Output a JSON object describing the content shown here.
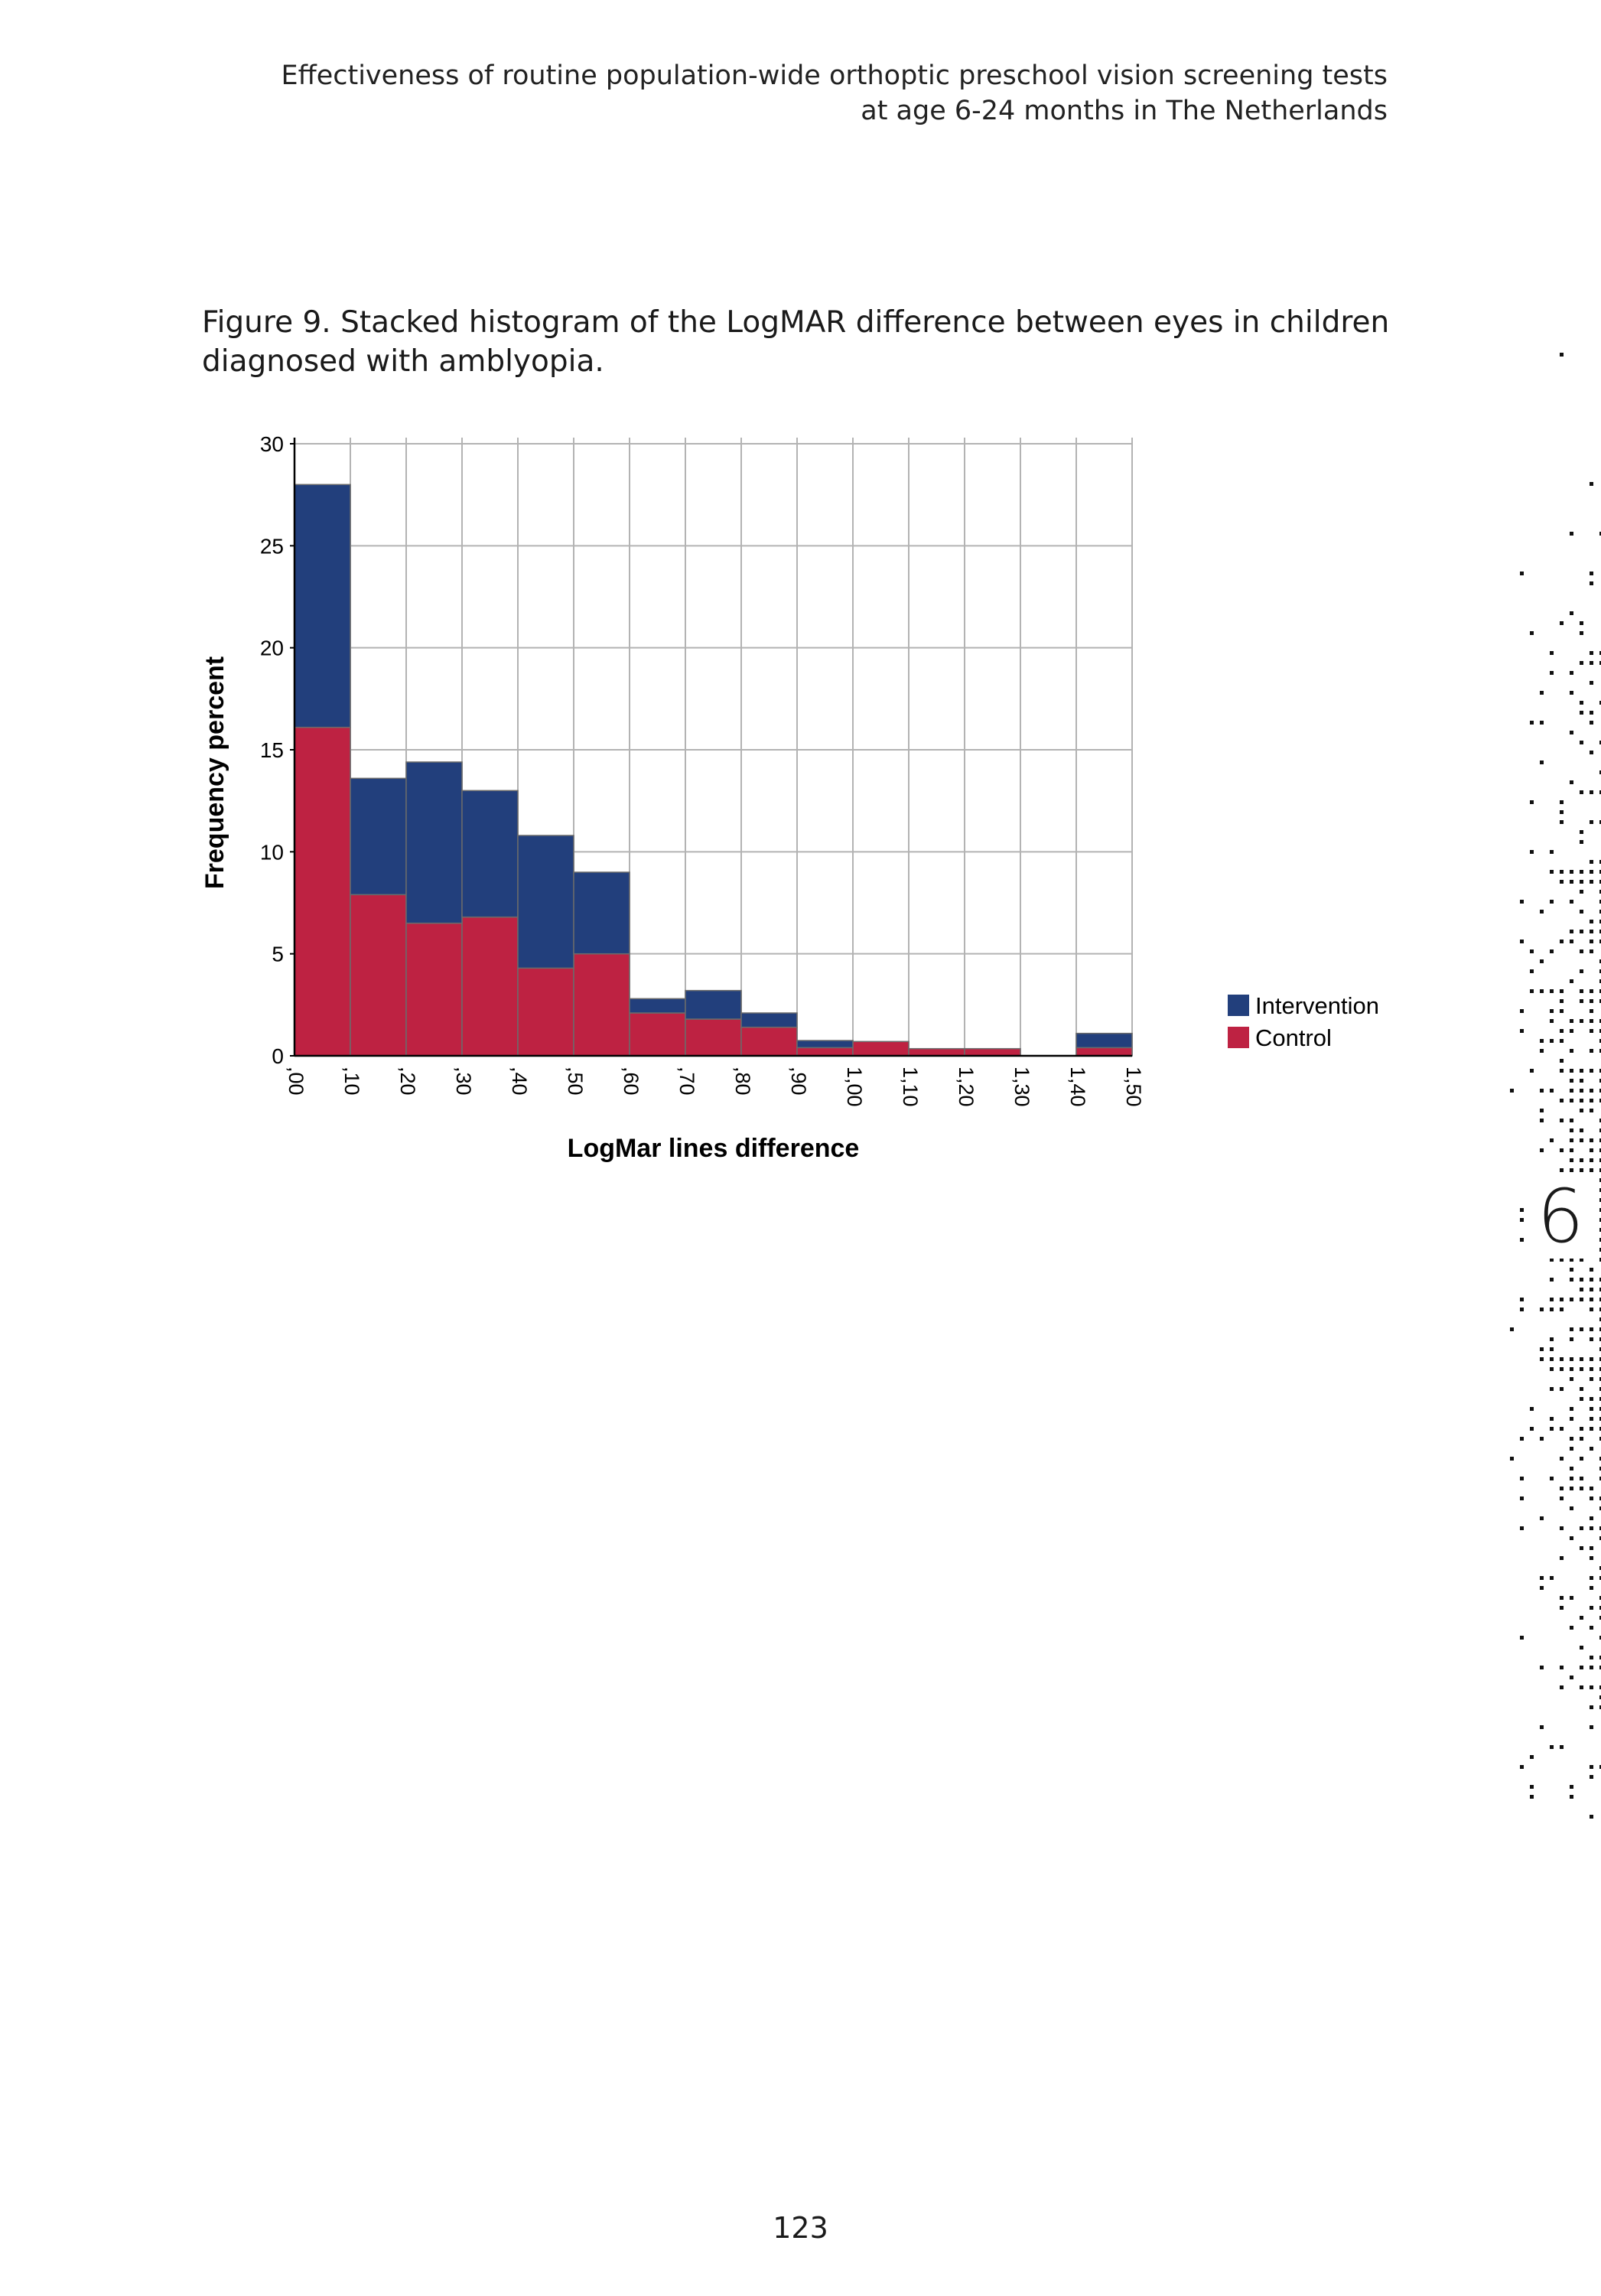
{
  "page": {
    "running_header": [
      "Effectiveness of routine population-wide orthoptic preschool vision screening tests",
      "at age 6-24 months in The Netherlands"
    ],
    "caption_label": "Figure 9.",
    "caption_text": " Stacked histogram of the LogMAR difference between eyes in children diagnosed with amblyopia.",
    "chapter_number": "6",
    "page_number": "123"
  },
  "chart_data": {
    "type": "bar",
    "stacked": true,
    "xlabel": "LogMar lines difference",
    "ylabel": "Frequency percent",
    "ylim": [
      0,
      30
    ],
    "y_ticks": [
      "0",
      "5",
      "10",
      "15",
      "20",
      "25",
      "30"
    ],
    "x_ticks": [
      ",00",
      ",10",
      ",20",
      ",30",
      ",40",
      ",50",
      ",60",
      ",70",
      ",80",
      ",90",
      "1,00",
      "1,10",
      "1,20",
      "1,30",
      "1,40",
      "1,50"
    ],
    "x_range": [
      0,
      1.5
    ],
    "bin_width": 0.1,
    "bins": [
      [
        0.0,
        0.1
      ],
      [
        0.1,
        0.2
      ],
      [
        0.2,
        0.3
      ],
      [
        0.3,
        0.4
      ],
      [
        0.4,
        0.5
      ],
      [
        0.5,
        0.6
      ],
      [
        0.6,
        0.7
      ],
      [
        0.7,
        0.8
      ],
      [
        0.8,
        0.9
      ],
      [
        0.9,
        1.0
      ],
      [
        1.0,
        1.1
      ],
      [
        1.1,
        1.2
      ],
      [
        1.2,
        1.3
      ],
      [
        1.3,
        1.4
      ],
      [
        1.4,
        1.5
      ]
    ],
    "series": [
      {
        "name": "Control",
        "color": "#BE2242",
        "values": [
          16.1,
          7.9,
          6.5,
          6.8,
          4.3,
          5.0,
          2.1,
          1.8,
          1.4,
          0.4,
          0.7,
          0.35,
          0.35,
          0.0,
          0.4
        ]
      },
      {
        "name": "Intervention",
        "color": "#223F7C",
        "values": [
          11.9,
          5.7,
          7.9,
          6.2,
          6.5,
          4.0,
          0.7,
          1.4,
          0.7,
          0.35,
          0.0,
          0.0,
          0.0,
          0.0,
          0.7
        ]
      }
    ],
    "legend": [
      "Intervention",
      "Control"
    ],
    "legend_position": "right",
    "grid": true
  }
}
